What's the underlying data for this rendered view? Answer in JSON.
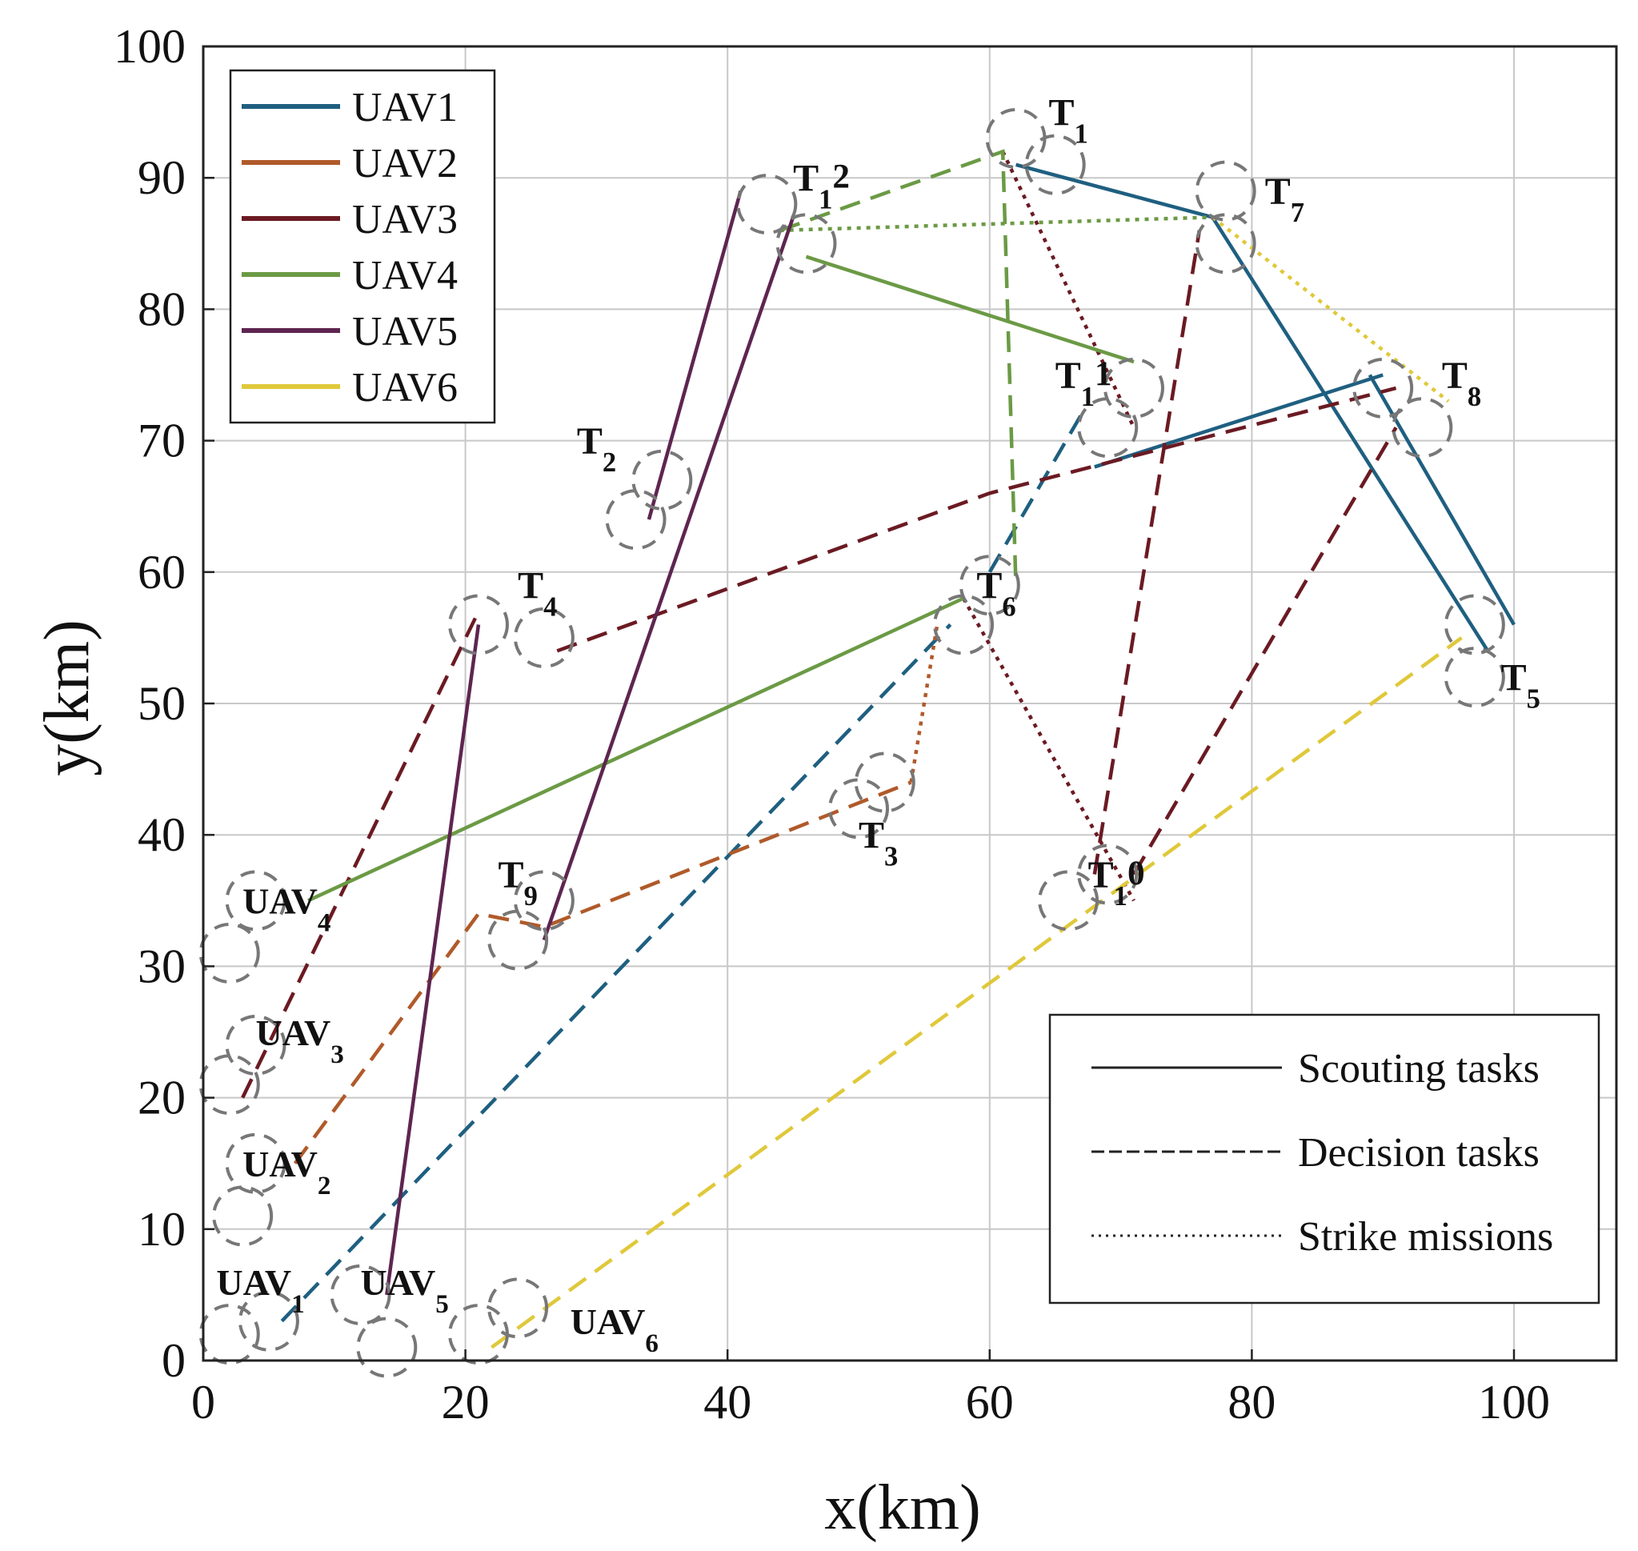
{
  "chart_data": {
    "type": "line",
    "xlabel": "x(km)",
    "ylabel": "y(km)",
    "xlim": [
      0,
      108
    ],
    "ylim": [
      0,
      100
    ],
    "xticks": [
      0,
      20,
      40,
      60,
      80,
      100
    ],
    "yticks": [
      0,
      10,
      20,
      30,
      40,
      50,
      60,
      70,
      80,
      90,
      100
    ],
    "grid": true,
    "legend_uav": {
      "placement": "top-left",
      "entries": [
        {
          "name": "UAV1",
          "color": "#1f5f80"
        },
        {
          "name": "UAV2",
          "color": "#b05a2a"
        },
        {
          "name": "UAV3",
          "color": "#6b1a22"
        },
        {
          "name": "UAV4",
          "color": "#6b9a45"
        },
        {
          "name": "UAV5",
          "color": "#5e2550"
        },
        {
          "name": "UAV6",
          "color": "#e0c83a"
        }
      ]
    },
    "legend_tasks": {
      "placement": "bottom-right",
      "entries": [
        {
          "name": "Scouting tasks",
          "style": "solid"
        },
        {
          "name": "Decision tasks",
          "style": "dashed"
        },
        {
          "name": "Strike missions",
          "style": "dotted"
        }
      ]
    },
    "circles": [
      {
        "x": 2,
        "y": 2
      },
      {
        "x": 5,
        "y": 3
      },
      {
        "x": 12,
        "y": 5
      },
      {
        "x": 14,
        "y": 1
      },
      {
        "x": 21,
        "y": 2
      },
      {
        "x": 24,
        "y": 4
      },
      {
        "x": 3,
        "y": 11
      },
      {
        "x": 4,
        "y": 15
      },
      {
        "x": 2,
        "y": 21
      },
      {
        "x": 4,
        "y": 24
      },
      {
        "x": 2,
        "y": 31
      },
      {
        "x": 4,
        "y": 35
      },
      {
        "x": 24,
        "y": 32
      },
      {
        "x": 26,
        "y": 35
      },
      {
        "x": 21,
        "y": 56
      },
      {
        "x": 26,
        "y": 55
      },
      {
        "x": 33,
        "y": 64
      },
      {
        "x": 35,
        "y": 67
      },
      {
        "x": 43,
        "y": 88
      },
      {
        "x": 46,
        "y": 85
      },
      {
        "x": 50,
        "y": 42
      },
      {
        "x": 52,
        "y": 44
      },
      {
        "x": 58,
        "y": 56
      },
      {
        "x": 60,
        "y": 59
      },
      {
        "x": 62,
        "y": 93
      },
      {
        "x": 65,
        "y": 91
      },
      {
        "x": 78,
        "y": 89
      },
      {
        "x": 78,
        "y": 85
      },
      {
        "x": 69,
        "y": 71
      },
      {
        "x": 71,
        "y": 74
      },
      {
        "x": 93,
        "y": 71
      },
      {
        "x": 90,
        "y": 74
      },
      {
        "x": 97,
        "y": 56
      },
      {
        "x": 97,
        "y": 52
      },
      {
        "x": 66,
        "y": 35
      },
      {
        "x": 69,
        "y": 37
      }
    ],
    "annotations": [
      {
        "text": "UAV",
        "sub": "1",
        "x": 1,
        "y": 5
      },
      {
        "text": "UAV",
        "sub": "2",
        "x": 3,
        "y": 14
      },
      {
        "text": "UAV",
        "sub": "3",
        "x": 4,
        "y": 24
      },
      {
        "text": "UAV",
        "sub": "4",
        "x": 3,
        "y": 34
      },
      {
        "text": "UAV",
        "sub": "5",
        "x": 12,
        "y": 5
      },
      {
        "text": "UAV",
        "sub": "6",
        "x": 28,
        "y": 2
      },
      {
        "text": "T",
        "sub": "1",
        "x": 64.5,
        "y": 94
      },
      {
        "text": "T",
        "sub": "2",
        "x": 28.5,
        "y": 69
      },
      {
        "text": "T",
        "sub": "3",
        "x": 50,
        "y": 39
      },
      {
        "text": "T",
        "sub": "4",
        "x": 24,
        "y": 58
      },
      {
        "text": "T",
        "sub": "5",
        "x": 99,
        "y": 51
      },
      {
        "text": "T",
        "sub": "6",
        "x": 59,
        "y": 58
      },
      {
        "text": "T",
        "sub": "7",
        "x": 81,
        "y": 88
      },
      {
        "text": "T",
        "sub": "8",
        "x": 94.5,
        "y": 74
      },
      {
        "text": "T",
        "sub": "9",
        "x": 22.5,
        "y": 36
      },
      {
        "text": "T",
        "sub": "1",
        "sub2": "0",
        "x": 67.5,
        "y": 36
      },
      {
        "text": "T",
        "sub": "1",
        "sub2": "1",
        "x": 65,
        "y": 74
      },
      {
        "text": "T",
        "sub": "1",
        "sub2": "2",
        "x": 45,
        "y": 89
      }
    ],
    "series": [
      {
        "name": "UAV1",
        "color": "#1f5f80",
        "segments": [
          {
            "style": "dashed",
            "points": [
              [
                6,
                3
              ],
              [
                57,
                56
              ]
            ]
          },
          {
            "style": "dashed",
            "points": [
              [
                60,
                60
              ],
              [
                67,
                72
              ]
            ]
          },
          {
            "style": "solid",
            "points": [
              [
                62,
                91
              ],
              [
                77,
                87
              ],
              [
                98,
                54
              ]
            ]
          },
          {
            "style": "solid",
            "points": [
              [
                68,
                68
              ],
              [
                90,
                75
              ]
            ]
          },
          {
            "style": "solid",
            "points": [
              [
                89,
                75
              ],
              [
                100,
                56
              ]
            ]
          }
        ]
      },
      {
        "name": "UAV2",
        "color": "#b05a2a",
        "segments": [
          {
            "style": "dashed",
            "points": [
              [
                7,
                15
              ],
              [
                21,
                34
              ],
              [
                26,
                33
              ],
              [
                54,
                44
              ]
            ]
          },
          {
            "style": "dotted",
            "points": [
              [
                54,
                44
              ],
              [
                56,
                56
              ]
            ]
          }
        ]
      },
      {
        "name": "UAV3",
        "color": "#6b1a22",
        "segments": [
          {
            "style": "dashed",
            "points": [
              [
                3,
                20
              ],
              [
                21,
                57
              ]
            ]
          },
          {
            "style": "dashed",
            "points": [
              [
                27,
                54
              ],
              [
                60,
                66
              ],
              [
                91,
                74
              ]
            ]
          },
          {
            "style": "dashed",
            "points": [
              [
                68,
                37
              ],
              [
                76,
                86
              ]
            ]
          },
          {
            "style": "dashed",
            "points": [
              [
                71,
                37
              ],
              [
                91,
                71
              ]
            ]
          },
          {
            "style": "dotted",
            "points": [
              [
                58,
                58
              ],
              [
                71,
                35
              ]
            ]
          },
          {
            "style": "dotted",
            "points": [
              [
                61,
                92
              ],
              [
                71,
                71
              ]
            ]
          }
        ]
      },
      {
        "name": "UAV4",
        "color": "#6b9a45",
        "segments": [
          {
            "style": "solid",
            "points": [
              [
                8,
                35
              ],
              [
                58,
                58
              ]
            ]
          },
          {
            "style": "solid",
            "points": [
              [
                46,
                84
              ],
              [
                71,
                76
              ]
            ]
          },
          {
            "style": "dashed",
            "points": [
              [
                44,
                86
              ],
              [
                61,
                92
              ],
              [
                62,
                59
              ]
            ]
          },
          {
            "style": "dotted",
            "points": [
              [
                44,
                86
              ],
              [
                77,
                87
              ]
            ]
          }
        ]
      },
      {
        "name": "UAV5",
        "color": "#5e2550",
        "segments": [
          {
            "style": "solid",
            "points": [
              [
                14,
                5
              ],
              [
                21,
                56
              ]
            ]
          },
          {
            "style": "solid",
            "points": [
              [
                26,
                32
              ],
              [
                45,
                87
              ]
            ]
          },
          {
            "style": "solid",
            "points": [
              [
                34,
                64
              ],
              [
                41,
                89
              ]
            ]
          }
        ]
      },
      {
        "name": "UAV6",
        "color": "#e0c83a",
        "segments": [
          {
            "style": "dashed",
            "points": [
              [
                22,
                1
              ],
              [
                96,
                55
              ]
            ]
          },
          {
            "style": "dotted",
            "points": [
              [
                77,
                87
              ],
              [
                95,
                73
              ]
            ]
          }
        ]
      }
    ]
  }
}
